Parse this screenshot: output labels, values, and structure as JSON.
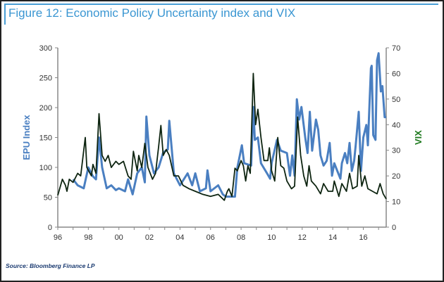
{
  "title": "Figure 12: Economic Policy Uncertainty index and VIX",
  "source": "Source: Bloomberg Finance LP",
  "chart_data": {
    "type": "line",
    "title": "Figure 12: Economic Policy Uncertainty index and VIX",
    "xlabel": "",
    "ylabel": "EPU Index",
    "y2label": "VIX",
    "xlim": [
      1996,
      2017.5
    ],
    "ylim": [
      0,
      300
    ],
    "y2lim": [
      0,
      70
    ],
    "x_ticks": [
      "96",
      "98",
      "00",
      "02",
      "04",
      "06",
      "08",
      "10",
      "12",
      "14",
      "16"
    ],
    "y_ticks": [
      "0",
      "50",
      "100",
      "150",
      "200",
      "250",
      "300"
    ],
    "y2_ticks": [
      "0",
      "10",
      "20",
      "30",
      "40",
      "50",
      "60",
      "70"
    ],
    "grid": false,
    "colors": {
      "epu": "#4a7fc1",
      "vix": "#0d2410",
      "ylabel": "#4a7fc1",
      "y2label": "#1f7a1f"
    },
    "series": [
      {
        "key": "epu",
        "axis": "left",
        "points": [
          [
            1997.0,
            80
          ],
          [
            1997.3,
            70
          ],
          [
            1997.7,
            65
          ],
          [
            1998.0,
            100
          ],
          [
            1998.3,
            85
          ],
          [
            1998.5,
            80
          ],
          [
            1998.7,
            150
          ],
          [
            1998.9,
            100
          ],
          [
            1999.2,
            65
          ],
          [
            1999.5,
            70
          ],
          [
            1999.8,
            62
          ],
          [
            2000.0,
            65
          ],
          [
            2000.4,
            60
          ],
          [
            2000.6,
            80
          ],
          [
            2000.9,
            55
          ],
          [
            2001.2,
            90
          ],
          [
            2001.5,
            100
          ],
          [
            2001.7,
            75
          ],
          [
            2001.8,
            185
          ],
          [
            2002.0,
            120
          ],
          [
            2002.3,
            90
          ],
          [
            2002.6,
            100
          ],
          [
            2002.9,
            125
          ],
          [
            2003.2,
            130
          ],
          [
            2003.3,
            178
          ],
          [
            2003.6,
            90
          ],
          [
            2004.0,
            70
          ],
          [
            2004.5,
            90
          ],
          [
            2004.8,
            70
          ],
          [
            2005.0,
            90
          ],
          [
            2005.3,
            60
          ],
          [
            2005.7,
            65
          ],
          [
            2005.8,
            95
          ],
          [
            2006.0,
            60
          ],
          [
            2006.5,
            70
          ],
          [
            2006.8,
            55
          ],
          [
            2007.0,
            51
          ],
          [
            2007.6,
            51
          ],
          [
            2007.75,
            99
          ],
          [
            2008.05,
            137
          ],
          [
            2008.2,
            107
          ],
          [
            2008.66,
            103
          ],
          [
            2008.8,
            201
          ],
          [
            2008.9,
            146
          ],
          [
            2009.1,
            150
          ],
          [
            2009.3,
            107
          ],
          [
            2009.7,
            90
          ],
          [
            2009.9,
            81
          ],
          [
            2010.0,
            107
          ],
          [
            2010.35,
            146
          ],
          [
            2010.6,
            128
          ],
          [
            2011.0,
            124
          ],
          [
            2011.2,
            86
          ],
          [
            2011.35,
            120
          ],
          [
            2011.5,
            86
          ],
          [
            2011.65,
            214
          ],
          [
            2011.8,
            180
          ],
          [
            2011.95,
            201
          ],
          [
            2012.2,
            150
          ],
          [
            2012.35,
            124
          ],
          [
            2012.5,
            193
          ],
          [
            2012.65,
            128
          ],
          [
            2012.9,
            180
          ],
          [
            2013.05,
            163
          ],
          [
            2013.2,
            120
          ],
          [
            2013.4,
            103
          ],
          [
            2013.6,
            111
          ],
          [
            2013.8,
            141
          ],
          [
            2013.95,
            86
          ],
          [
            2014.1,
            107
          ],
          [
            2014.3,
            94
          ],
          [
            2014.5,
            81
          ],
          [
            2014.6,
            107
          ],
          [
            2014.8,
            124
          ],
          [
            2014.95,
            107
          ],
          [
            2015.1,
            141
          ],
          [
            2015.25,
            94
          ],
          [
            2015.4,
            111
          ],
          [
            2015.5,
            137
          ],
          [
            2015.7,
            193
          ],
          [
            2015.85,
            94
          ],
          [
            2016.0,
            150
          ],
          [
            2016.2,
            171
          ],
          [
            2016.3,
            137
          ],
          [
            2016.5,
            266
          ],
          [
            2016.55,
            270
          ],
          [
            2016.65,
            154
          ],
          [
            2016.8,
            146
          ],
          [
            2016.9,
            279
          ],
          [
            2017.0,
            291
          ],
          [
            2017.15,
            227
          ],
          [
            2017.25,
            236
          ],
          [
            2017.4,
            184
          ],
          [
            2017.5,
            184
          ]
        ]
      },
      {
        "key": "vix",
        "axis": "right",
        "points": [
          [
            1996.0,
            12.4
          ],
          [
            1996.3,
            18.7
          ],
          [
            1996.5,
            16.4
          ],
          [
            1996.6,
            14
          ],
          [
            1996.75,
            18.7
          ],
          [
            1997.0,
            17.5
          ],
          [
            1997.3,
            21
          ],
          [
            1997.5,
            20
          ],
          [
            1997.8,
            35
          ],
          [
            1997.9,
            23.3
          ],
          [
            1998.2,
            20
          ],
          [
            1998.3,
            24.5
          ],
          [
            1998.5,
            21
          ],
          [
            1998.7,
            44.3
          ],
          [
            1998.9,
            28
          ],
          [
            1999.1,
            25.7
          ],
          [
            1999.3,
            28
          ],
          [
            1999.5,
            23.3
          ],
          [
            1999.8,
            25.7
          ],
          [
            2000.0,
            24.5
          ],
          [
            2000.3,
            25.7
          ],
          [
            2000.6,
            20
          ],
          [
            2000.8,
            18.7
          ],
          [
            2000.95,
            29.6
          ],
          [
            2001.2,
            22
          ],
          [
            2001.3,
            28
          ],
          [
            2001.5,
            23.3
          ],
          [
            2001.7,
            32.7
          ],
          [
            2001.9,
            23.3
          ],
          [
            2002.2,
            18.7
          ],
          [
            2002.4,
            21
          ],
          [
            2002.6,
            31.5
          ],
          [
            2002.75,
            39.7
          ],
          [
            2002.9,
            28
          ],
          [
            2003.1,
            30.3
          ],
          [
            2003.3,
            28
          ],
          [
            2003.6,
            20
          ],
          [
            2003.9,
            20
          ],
          [
            2004.2,
            16.3
          ],
          [
            2004.6,
            15
          ],
          [
            2005.0,
            14
          ],
          [
            2005.5,
            12.8
          ],
          [
            2006.0,
            12
          ],
          [
            2006.5,
            12.8
          ],
          [
            2006.9,
            10.5
          ],
          [
            2007.1,
            14
          ],
          [
            2007.2,
            15
          ],
          [
            2007.4,
            12
          ],
          [
            2007.6,
            23
          ],
          [
            2007.75,
            22
          ],
          [
            2008.0,
            26
          ],
          [
            2008.15,
            24
          ],
          [
            2008.3,
            18
          ],
          [
            2008.45,
            24
          ],
          [
            2008.6,
            21
          ],
          [
            2008.8,
            60
          ],
          [
            2008.95,
            40
          ],
          [
            2009.1,
            46
          ],
          [
            2009.3,
            35
          ],
          [
            2009.5,
            26
          ],
          [
            2009.75,
            26
          ],
          [
            2009.85,
            31
          ],
          [
            2010.0,
            22
          ],
          [
            2010.2,
            18
          ],
          [
            2010.4,
            35
          ],
          [
            2010.6,
            24
          ],
          [
            2010.8,
            23
          ],
          [
            2011.0,
            18
          ],
          [
            2011.3,
            15
          ],
          [
            2011.5,
            16
          ],
          [
            2011.7,
            43
          ],
          [
            2011.9,
            28
          ],
          [
            2012.1,
            20
          ],
          [
            2012.3,
            16
          ],
          [
            2012.45,
            24
          ],
          [
            2012.6,
            18
          ],
          [
            2012.9,
            16
          ],
          [
            2013.2,
            13
          ],
          [
            2013.4,
            17
          ],
          [
            2013.7,
            14
          ],
          [
            2014.0,
            14
          ],
          [
            2014.1,
            18
          ],
          [
            2014.4,
            12
          ],
          [
            2014.6,
            17
          ],
          [
            2014.9,
            14
          ],
          [
            2015.1,
            21
          ],
          [
            2015.3,
            15
          ],
          [
            2015.6,
            16
          ],
          [
            2015.7,
            28
          ],
          [
            2015.9,
            16
          ],
          [
            2016.1,
            20
          ],
          [
            2016.3,
            15
          ],
          [
            2016.6,
            14
          ],
          [
            2016.9,
            13
          ],
          [
            2017.1,
            17
          ],
          [
            2017.3,
            13
          ],
          [
            2017.5,
            11
          ]
        ]
      }
    ]
  }
}
